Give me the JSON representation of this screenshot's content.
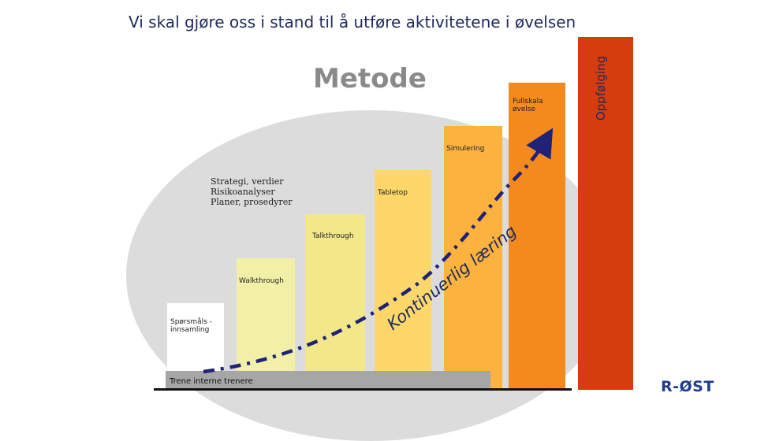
{
  "title": "Vi skal gjøre oss i stand til å utføre aktivitetene i øvelsen",
  "heading": "Metode",
  "strategy_lines": [
    "Strategi, verdier",
    "Risikoanalyser",
    "Planer, prosedyrer"
  ],
  "stages": [
    {
      "label_lines": [
        "Spørsmåls -",
        "innsamling"
      ],
      "color": "#ffffff"
    },
    {
      "label_lines": [
        "Walkthrough"
      ],
      "color": "#f2f0a6"
    },
    {
      "label_lines": [
        "Talkthrough"
      ],
      "color": "#f2e88a"
    },
    {
      "label_lines": [
        "Tabletop"
      ],
      "color": "#fdd76a"
    },
    {
      "label_lines": [
        "Simulering"
      ],
      "color": "#fbb23e"
    },
    {
      "label_lines": [
        "Fullskala",
        "øvelse"
      ],
      "color": "#f28a1e"
    }
  ],
  "oppfolging": {
    "label": "Oppfølging",
    "color": "#d63d0e"
  },
  "baseline_bar": {
    "label": "Trene interne trenere",
    "color": "#a6a6a6"
  },
  "curve_text": "Kontinuerlig læring",
  "logo": "R-ØST",
  "colors": {
    "title": "#1f2a5c",
    "curve": "#1f2277",
    "ellipse": "#dcdcdc"
  }
}
